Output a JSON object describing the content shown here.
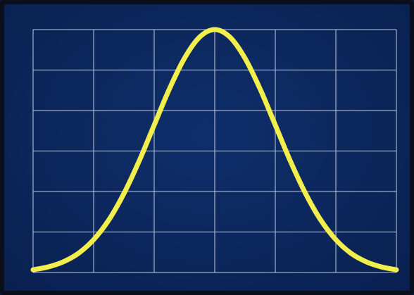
{
  "chart_data": {
    "type": "line",
    "title": "",
    "xlabel": "",
    "ylabel": "",
    "grid": true,
    "grid_cols": 6,
    "grid_rows": 6,
    "xlim": [
      -3,
      3
    ],
    "ylim": [
      0,
      1
    ],
    "series": [
      {
        "x": [
          -3.0,
          -2.75,
          -2.5,
          -2.25,
          -2.0,
          -1.75,
          -1.5,
          -1.25,
          -1.0,
          -0.75,
          -0.5,
          -0.25,
          0.0,
          0.25,
          0.5,
          0.75,
          1.0,
          1.25,
          1.5,
          1.75,
          2.0,
          2.25,
          2.5,
          2.75,
          3.0
        ],
        "y": [
          0.011,
          0.023,
          0.044,
          0.079,
          0.135,
          0.216,
          0.325,
          0.458,
          0.607,
          0.755,
          0.882,
          0.969,
          1.0,
          0.969,
          0.882,
          0.755,
          0.607,
          0.458,
          0.325,
          0.216,
          0.135,
          0.079,
          0.044,
          0.023,
          0.011
        ]
      }
    ],
    "colors": {
      "background": "#0c275c",
      "grid": "#c9d3e6",
      "curve": "#f2ee4b",
      "frame": "#0b0f1c"
    }
  }
}
